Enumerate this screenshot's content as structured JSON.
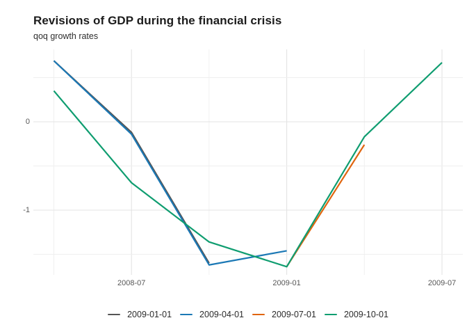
{
  "header": {
    "title": "Revisions of GDP during the financial crisis",
    "subtitle": "qoq growth rates"
  },
  "chart_data": {
    "type": "line",
    "title": "Revisions of GDP during the financial crisis",
    "subtitle": "qoq growth rates",
    "xlabel": "",
    "ylabel": "",
    "grid": true,
    "legend_position": "bottom",
    "ylim": [
      -1.76,
      0.82
    ],
    "x_quarters": [
      "2008-04",
      "2008-07",
      "2008-10",
      "2009-01",
      "2009-04",
      "2009-07"
    ],
    "x_tick_labels": [
      "2008-07",
      "2009-01",
      "2009-07"
    ],
    "y_ticks": [
      {
        "label": "0",
        "value": 0
      },
      {
        "label": "-1",
        "value": -1
      }
    ],
    "y_minor_gridlines": [
      0.5,
      -0.5,
      -1.5
    ],
    "series": [
      {
        "name": "2009-01-01",
        "color": "#555555",
        "x": [
          "2008-04",
          "2008-07",
          "2008-10"
        ],
        "values": [
          0.69,
          -0.12,
          -1.6
        ]
      },
      {
        "name": "2009-04-01",
        "color": "#1b78b5",
        "x": [
          "2008-04",
          "2008-07",
          "2008-10",
          "2009-01"
        ],
        "values": [
          0.69,
          -0.14,
          -1.62,
          -1.46
        ]
      },
      {
        "name": "2009-07-01",
        "color": "#e0650f",
        "x": [
          "2009-01",
          "2009-04"
        ],
        "values": [
          -1.64,
          -0.26
        ]
      },
      {
        "name": "2009-10-01",
        "color": "#0f9d70",
        "x": [
          "2008-04",
          "2008-07",
          "2008-10",
          "2009-01",
          "2009-04",
          "2009-07"
        ],
        "values": [
          0.35,
          -0.69,
          -1.36,
          -1.64,
          -0.17,
          0.67
        ]
      }
    ],
    "legend_entries": [
      "2009-01-01",
      "2009-04-01",
      "2009-07-01",
      "2009-10-01"
    ],
    "colors": {
      "major_gridline": "#e3e3e3",
      "minor_gridline": "#efefef",
      "axis_text": "#565656",
      "title_text": "#1c1c1c"
    }
  }
}
